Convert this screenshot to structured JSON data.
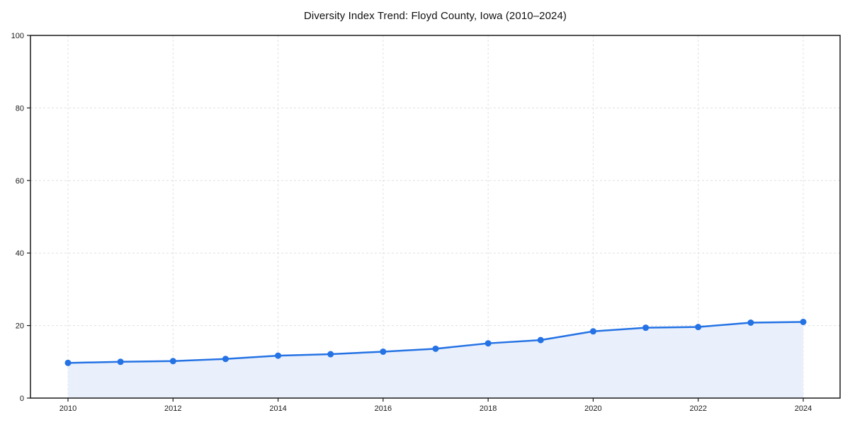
{
  "chart": {
    "title": "Diversity Index Trend: Floyd County, Iowa (2010–2024)"
  },
  "chart_data": {
    "type": "line",
    "title": "Diversity Index Trend: Floyd County, Iowa (2010–2024)",
    "x": [
      2010,
      2011,
      2012,
      2013,
      2014,
      2015,
      2016,
      2017,
      2018,
      2019,
      2020,
      2021,
      2022,
      2023,
      2024
    ],
    "series": [
      {
        "name": "Diversity Index",
        "values": [
          9.7,
          10.0,
          10.2,
          10.8,
          11.7,
          12.1,
          12.8,
          13.6,
          15.1,
          16.0,
          18.4,
          19.4,
          19.6,
          20.8,
          21.0
        ]
      }
    ],
    "xlabel": "",
    "ylabel": "",
    "ylim": [
      0,
      100
    ],
    "yticks": [
      0,
      20,
      40,
      60,
      80,
      100
    ],
    "xticks": [
      2010,
      2012,
      2014,
      2016,
      2018,
      2020,
      2022,
      2024
    ],
    "grid": true,
    "grid_style": "dashed",
    "legend": false,
    "area_fill": true,
    "marker": "circle",
    "colors": {
      "line": "#2472e4",
      "marker": "#2472e4",
      "area_fill": "#e9f0fc",
      "grid": "#e0e0e0",
      "spine": "#1a1a1a",
      "tick_label": "#1a1a1a",
      "title": "#111111",
      "background": "#ffffff"
    }
  }
}
